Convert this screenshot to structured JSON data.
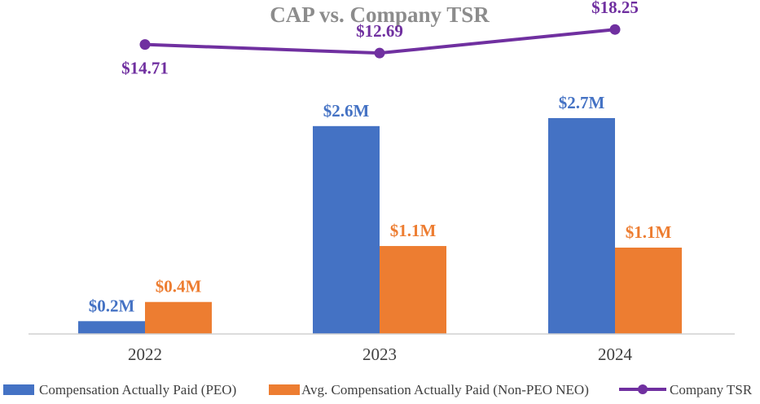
{
  "chart_data": {
    "type": "bar",
    "title": "CAP vs. Company TSR",
    "categories": [
      "2022",
      "2023",
      "2024"
    ],
    "series": [
      {
        "name": "Compensation Actually Paid (PEO)",
        "kind": "bar",
        "axis": "primary",
        "color": "#4472c4",
        "values": [
          0.16,
          2.6,
          2.7
        ],
        "labels": [
          "$0.2M",
          "$2.6M",
          "$2.7M"
        ]
      },
      {
        "name": "Avg. Compensation Actually Paid (Non-PEO NEO)",
        "kind": "bar",
        "axis": "primary",
        "color": "#ed7d31",
        "values": [
          0.4,
          1.1,
          1.08
        ],
        "labels": [
          "$0.4M",
          "$1.1M",
          "$1.1M"
        ]
      },
      {
        "name": "Company TSR",
        "kind": "line",
        "axis": "secondary",
        "color": "#7030a0",
        "values": [
          14.71,
          12.69,
          18.25
        ],
        "labels": [
          "$14.71",
          "$12.69",
          "$18.25"
        ]
      }
    ],
    "primary_ylim": [
      0,
      2.7
    ],
    "secondary_ylim": [
      -53.5,
      25.2
    ],
    "xlabel": "",
    "ylabel": "",
    "grid": false,
    "legend": "bottom"
  }
}
